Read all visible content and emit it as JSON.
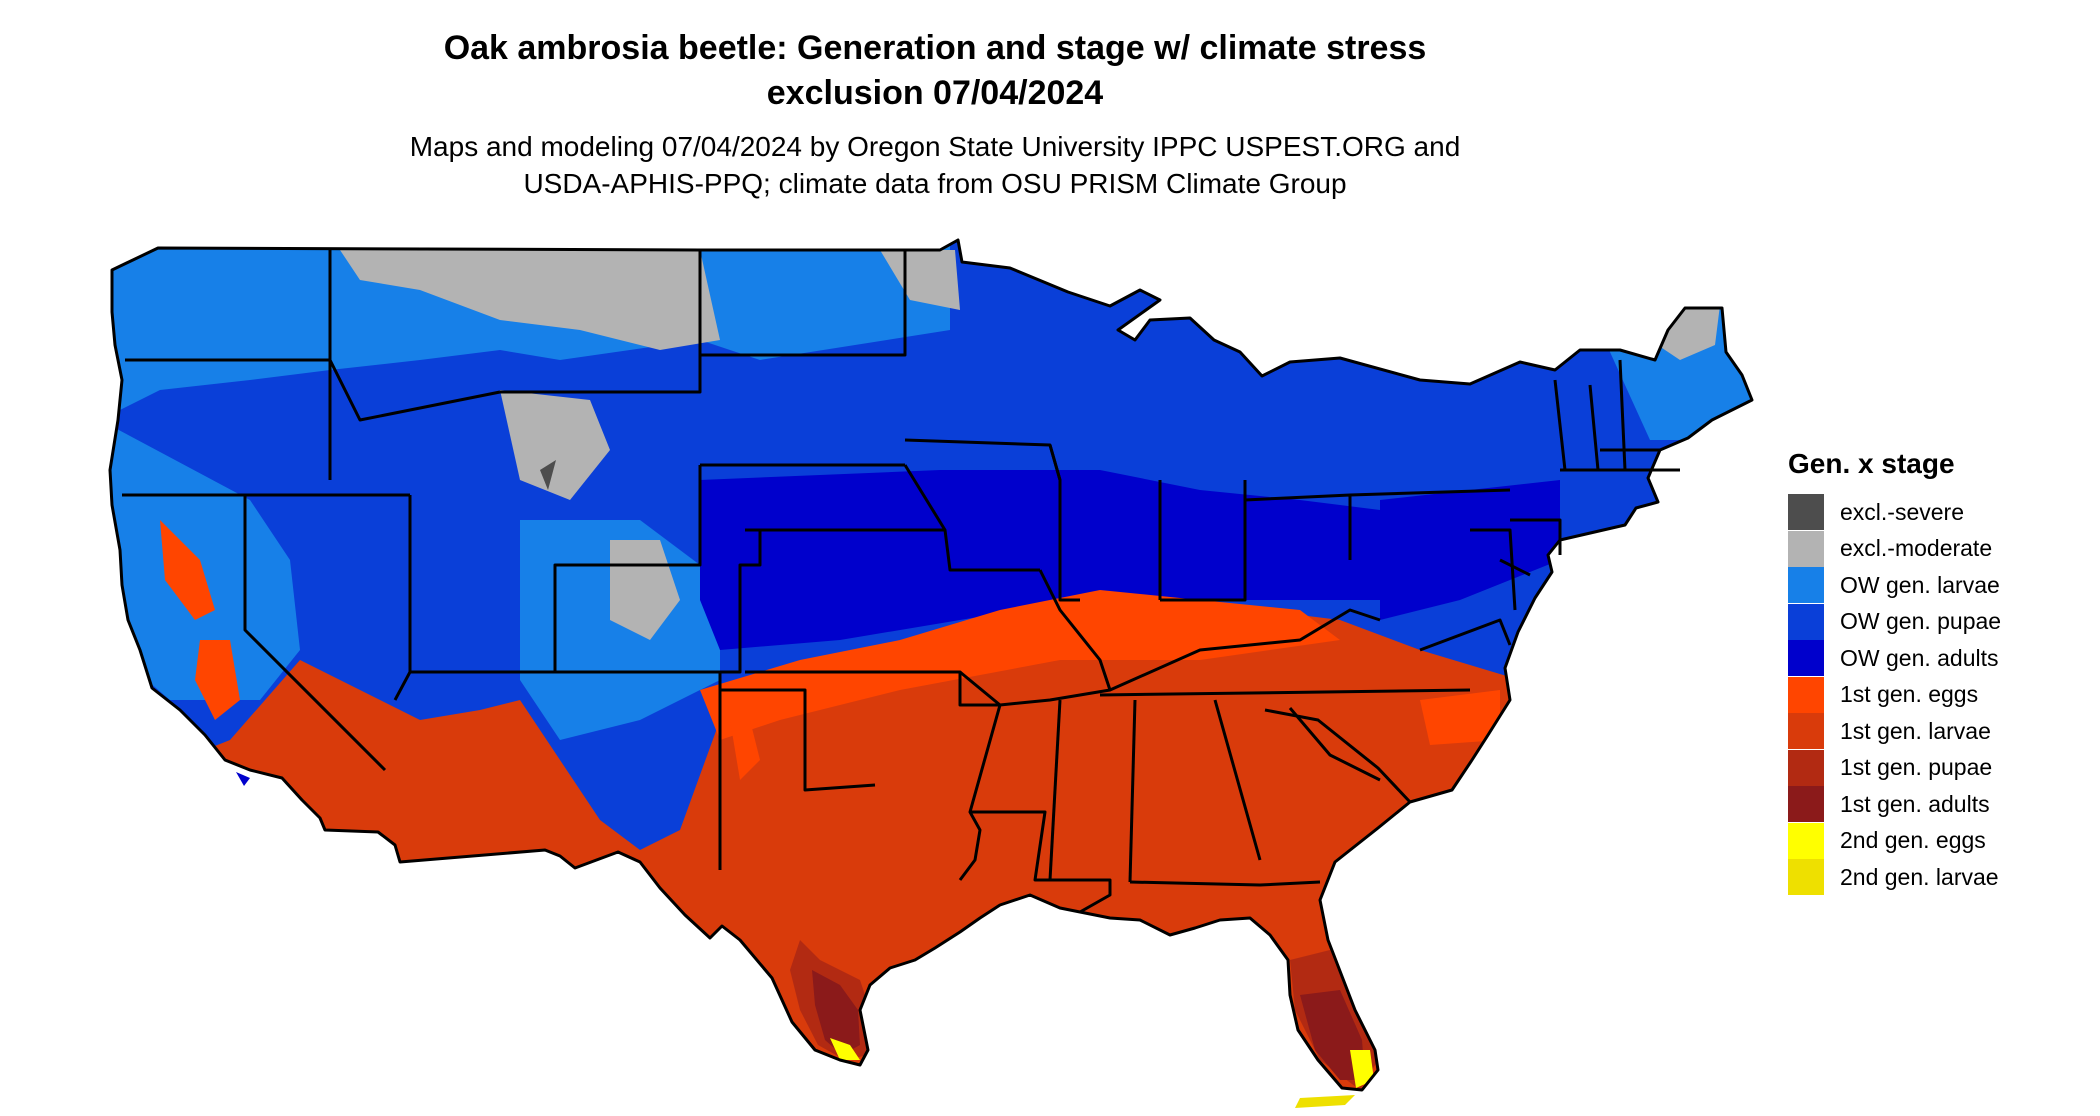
{
  "title": {
    "line1": "Oak ambrosia beetle: Generation and stage w/ climate stress",
    "line2": "exclusion 07/04/2024"
  },
  "subtitle": {
    "line1": "Maps and modeling 07/04/2024 by Oregon State University IPPC USPEST.ORG and",
    "line2": "USDA-APHIS-PPQ; climate data from OSU PRISM Climate Group"
  },
  "legend": {
    "title": "Gen. x stage",
    "items": [
      {
        "label": "excl.-severe",
        "color": "#4d4d4d"
      },
      {
        "label": "excl.-moderate",
        "color": "#b3b3b3"
      },
      {
        "label": "OW gen. larvae",
        "color": "#1780e8"
      },
      {
        "label": "OW gen. pupae",
        "color": "#0a3fd8"
      },
      {
        "label": "OW gen. adults",
        "color": "#0000cc"
      },
      {
        "label": "1st gen. eggs",
        "color": "#ff4500"
      },
      {
        "label": "1st gen. larvae",
        "color": "#d93b0b"
      },
      {
        "label": "1st gen. pupae",
        "color": "#b22a12"
      },
      {
        "label": "1st gen. adults",
        "color": "#8b1a1a"
      },
      {
        "label": "2nd gen. eggs",
        "color": "#ffff00"
      },
      {
        "label": "2nd gen. larvae",
        "color": "#eee000"
      }
    ]
  }
}
